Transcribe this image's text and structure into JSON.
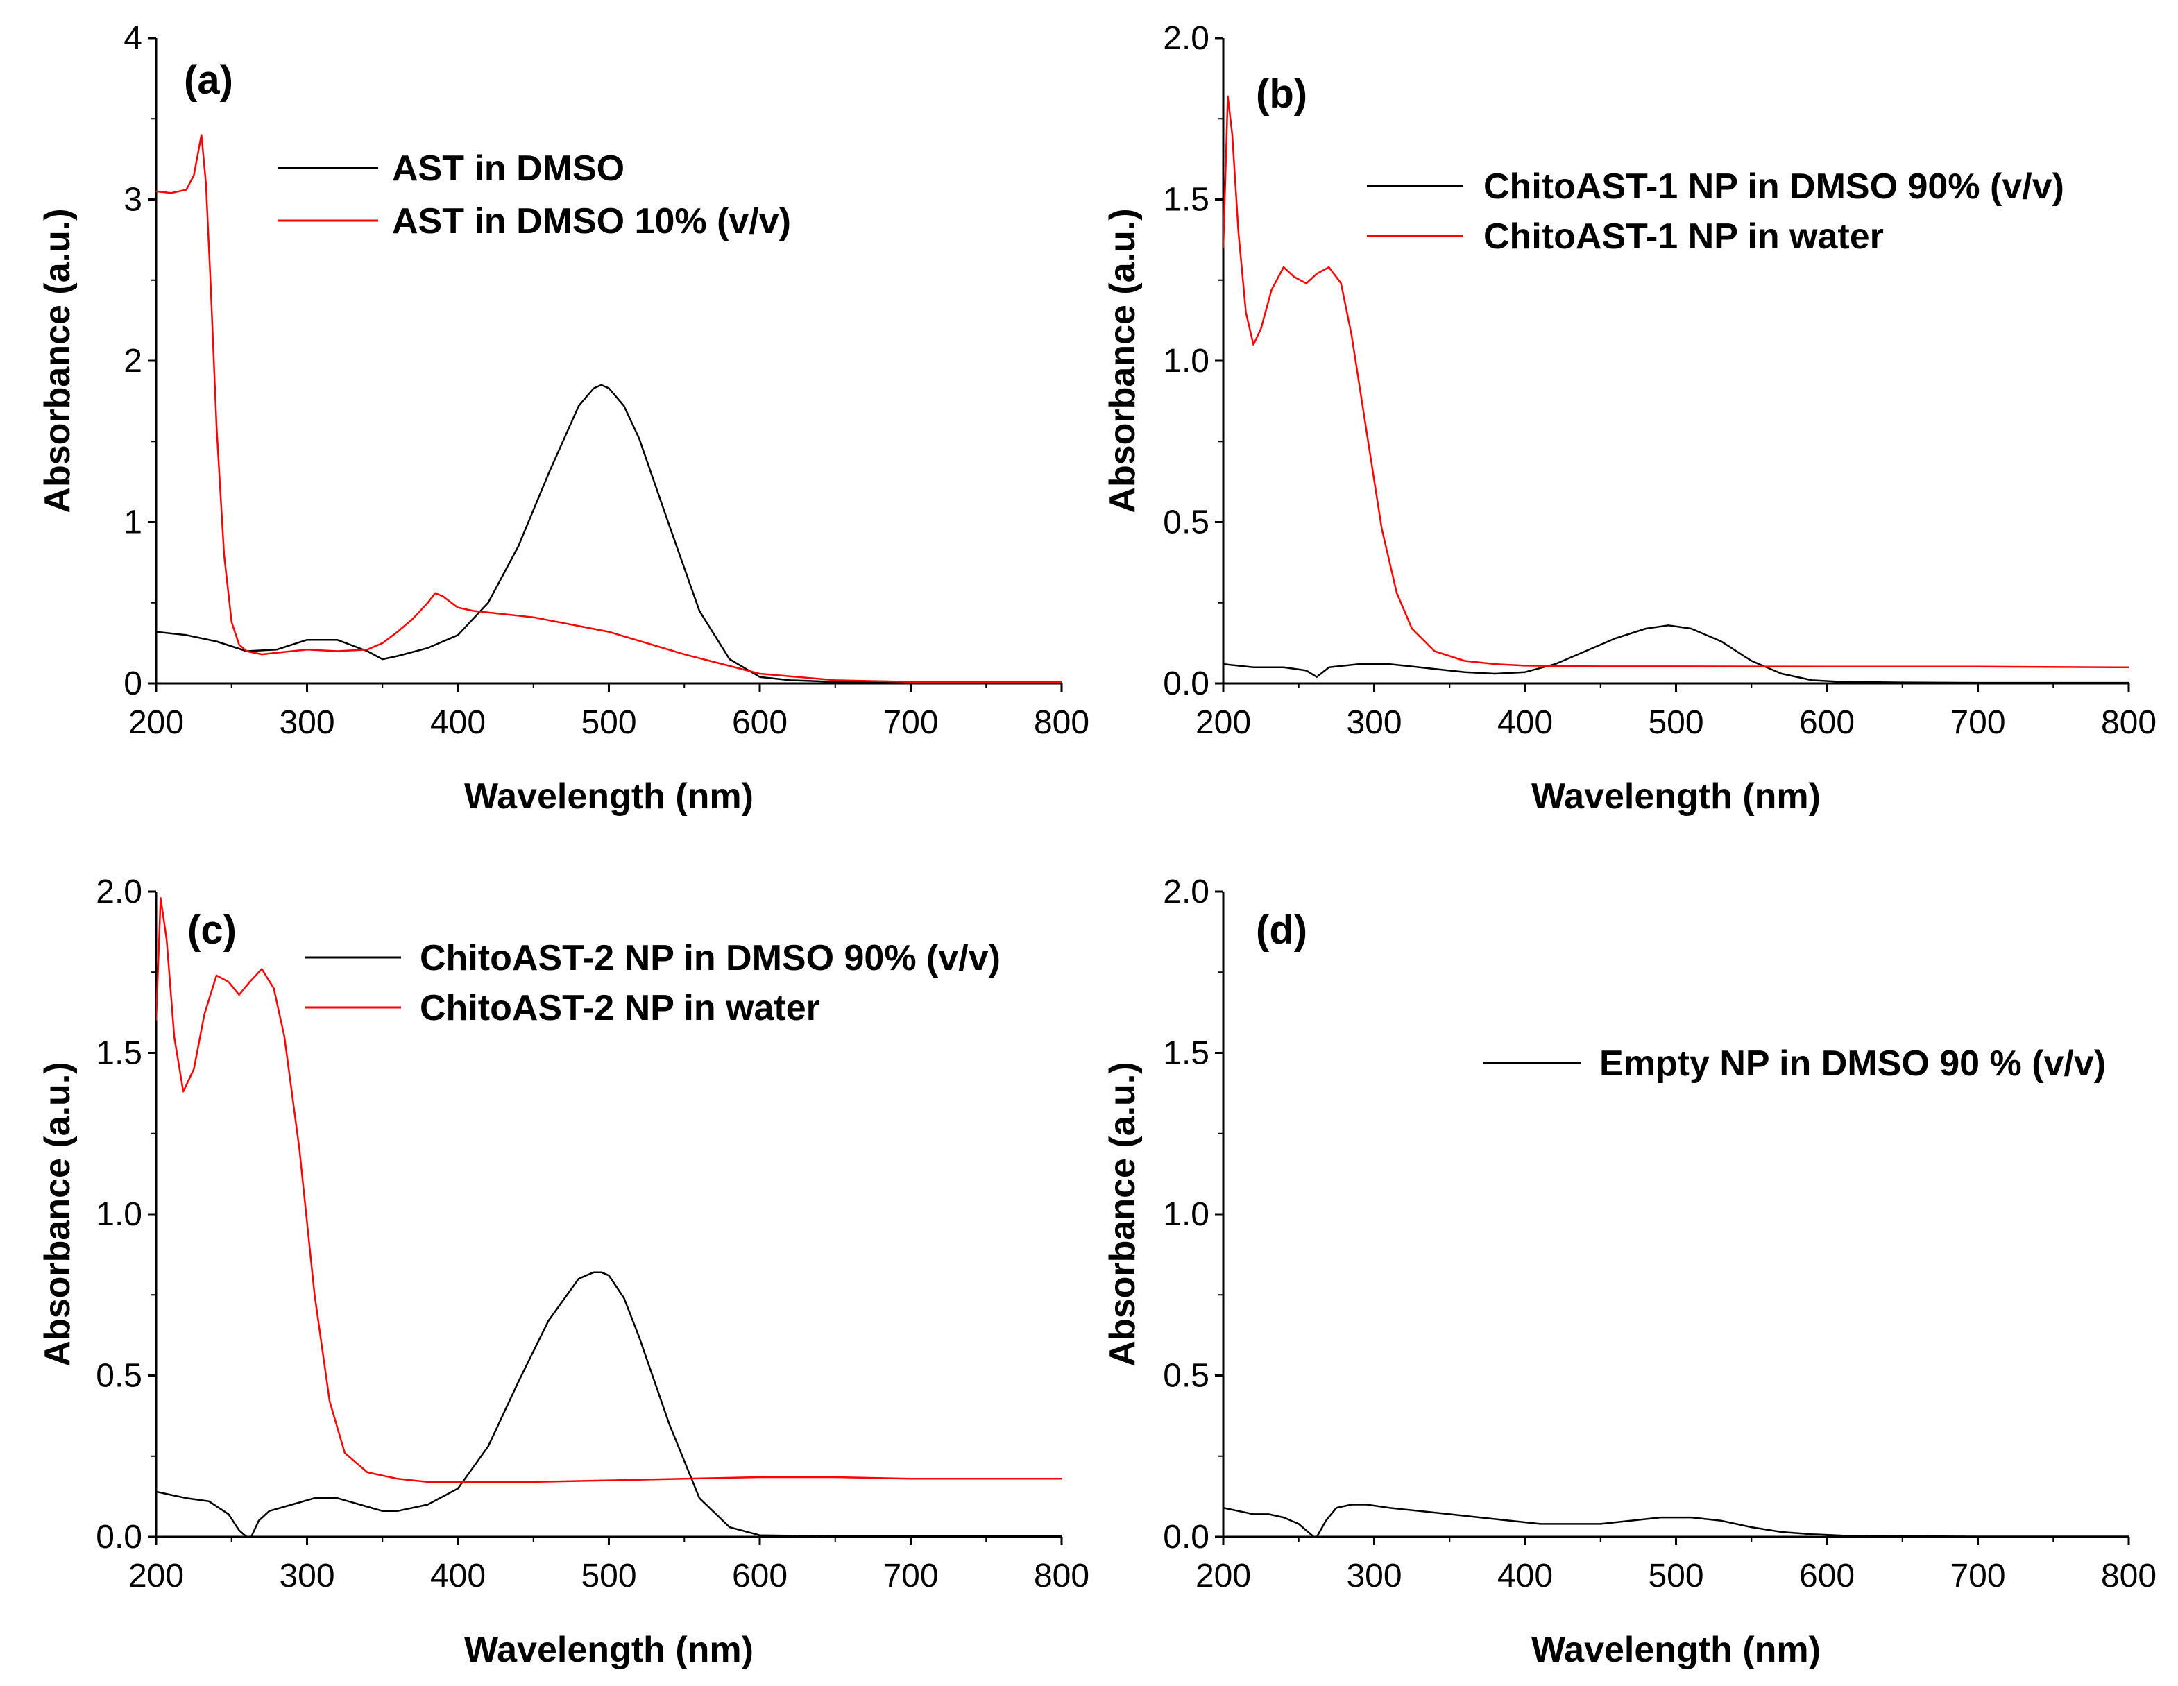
{
  "figure": {
    "panels": [
      {
        "id": "a",
        "label": "(a)",
        "ytick_labels": [
          "0",
          "1",
          "2",
          "3",
          "4"
        ]
      },
      {
        "id": "b",
        "label": "(b)",
        "ytick_labels": [
          "0.0",
          "0.5",
          "1.0",
          "1.5",
          "2.0"
        ]
      },
      {
        "id": "c",
        "label": "(c)",
        "ytick_labels": [
          "0.0",
          "0.5",
          "1.0",
          "1.5",
          "2.0"
        ]
      },
      {
        "id": "d",
        "label": "(d)",
        "ytick_labels": [
          "0.0",
          "0.5",
          "1.0",
          "1.5",
          "2.0"
        ]
      }
    ]
  },
  "chart_data": [
    {
      "type": "line",
      "panel": "(a)",
      "xlabel": "Wavelength (nm)",
      "ylabel": "Absorbance (a.u.)",
      "xlim": [
        200,
        800
      ],
      "ylim": [
        0,
        4
      ],
      "xticks": [
        200,
        300,
        400,
        500,
        600,
        700,
        800
      ],
      "yticks": [
        0,
        1,
        2,
        3,
        4
      ],
      "legend_position": "top-center",
      "series": [
        {
          "name": "AST in DMSO",
          "color": "#000000",
          "x": [
            200,
            220,
            240,
            260,
            280,
            300,
            320,
            340,
            350,
            360,
            380,
            400,
            420,
            440,
            460,
            480,
            490,
            495,
            500,
            510,
            520,
            540,
            560,
            580,
            600,
            620,
            650,
            700,
            750,
            800
          ],
          "y": [
            0.32,
            0.3,
            0.26,
            0.2,
            0.21,
            0.27,
            0.27,
            0.2,
            0.15,
            0.17,
            0.22,
            0.3,
            0.5,
            0.85,
            1.3,
            1.72,
            1.83,
            1.85,
            1.83,
            1.72,
            1.52,
            0.98,
            0.45,
            0.15,
            0.04,
            0.02,
            0.01,
            0.01,
            0.01,
            0.01
          ]
        },
        {
          "name": "AST in DMSO 10% (v/v)",
          "color": "#ff0000",
          "x": [
            200,
            210,
            220,
            225,
            228,
            230,
            233,
            236,
            240,
            245,
            250,
            255,
            260,
            270,
            280,
            300,
            320,
            340,
            350,
            360,
            370,
            380,
            385,
            390,
            400,
            410,
            420,
            450,
            500,
            550,
            600,
            650,
            700,
            750,
            800
          ],
          "y": [
            3.05,
            3.04,
            3.06,
            3.15,
            3.3,
            3.4,
            3.1,
            2.5,
            1.6,
            0.8,
            0.38,
            0.24,
            0.2,
            0.18,
            0.19,
            0.21,
            0.2,
            0.21,
            0.25,
            0.32,
            0.4,
            0.5,
            0.56,
            0.54,
            0.47,
            0.45,
            0.44,
            0.41,
            0.32,
            0.18,
            0.06,
            0.02,
            0.01,
            0.01,
            0.01
          ]
        }
      ]
    },
    {
      "type": "line",
      "panel": "(b)",
      "xlabel": "Wavelength (nm)",
      "ylabel": "Absorbance (a.u.)",
      "xlim": [
        200,
        800
      ],
      "ylim": [
        0,
        2.0
      ],
      "xticks": [
        200,
        300,
        400,
        500,
        600,
        700,
        800
      ],
      "yticks": [
        0.0,
        0.5,
        1.0,
        1.5,
        2.0
      ],
      "legend_position": "top-right",
      "series": [
        {
          "name": "ChitoAST-1 NP in DMSO 90% (v/v)",
          "color": "#000000",
          "x": [
            200,
            220,
            240,
            255,
            262,
            270,
            290,
            310,
            340,
            360,
            380,
            400,
            420,
            440,
            460,
            480,
            495,
            510,
            530,
            550,
            570,
            590,
            610,
            650,
            700,
            750,
            800
          ],
          "y": [
            0.06,
            0.05,
            0.05,
            0.04,
            0.02,
            0.05,
            0.06,
            0.06,
            0.045,
            0.035,
            0.03,
            0.035,
            0.06,
            0.1,
            0.14,
            0.17,
            0.18,
            0.17,
            0.13,
            0.07,
            0.03,
            0.01,
            0.005,
            0.003,
            0.002,
            0.002,
            0.002
          ]
        },
        {
          "name": "ChitoAST-1 NP in water",
          "color": "#ff0000",
          "x": [
            200,
            203,
            206,
            210,
            215,
            220,
            225,
            232,
            240,
            247,
            255,
            262,
            270,
            278,
            285,
            295,
            305,
            315,
            325,
            340,
            360,
            380,
            400,
            450,
            500,
            600,
            700,
            800
          ],
          "y": [
            1.35,
            1.82,
            1.7,
            1.4,
            1.15,
            1.05,
            1.1,
            1.22,
            1.29,
            1.26,
            1.24,
            1.27,
            1.29,
            1.24,
            1.08,
            0.78,
            0.48,
            0.28,
            0.17,
            0.1,
            0.07,
            0.06,
            0.055,
            0.053,
            0.053,
            0.052,
            0.052,
            0.05
          ]
        }
      ]
    },
    {
      "type": "line",
      "panel": "(c)",
      "xlabel": "Wavelength (nm)",
      "ylabel": "Absorbance (a.u.)",
      "xlim": [
        200,
        800
      ],
      "ylim": [
        0,
        2.0
      ],
      "xticks": [
        200,
        300,
        400,
        500,
        600,
        700,
        800
      ],
      "yticks": [
        0.0,
        0.5,
        1.0,
        1.5,
        2.0
      ],
      "legend_position": "top-right",
      "series": [
        {
          "name": "ChitoAST-2 NP in DMSO 90% (v/v)",
          "color": "#000000",
          "x": [
            200,
            210,
            220,
            235,
            248,
            255,
            260,
            263,
            268,
            275,
            290,
            305,
            320,
            335,
            350,
            360,
            380,
            400,
            420,
            440,
            460,
            480,
            490,
            495,
            500,
            510,
            520,
            540,
            560,
            580,
            600,
            650,
            700,
            800
          ],
          "y": [
            0.14,
            0.13,
            0.12,
            0.11,
            0.07,
            0.02,
            0.0,
            0.0,
            0.05,
            0.08,
            0.1,
            0.12,
            0.12,
            0.1,
            0.08,
            0.08,
            0.1,
            0.15,
            0.28,
            0.48,
            0.67,
            0.8,
            0.82,
            0.82,
            0.81,
            0.74,
            0.62,
            0.35,
            0.12,
            0.03,
            0.005,
            0.002,
            0.002,
            0.002
          ]
        },
        {
          "name": "ChitoAST-2 NP in water",
          "color": "#ff0000",
          "x": [
            200,
            203,
            207,
            212,
            218,
            225,
            232,
            240,
            248,
            255,
            262,
            270,
            278,
            285,
            295,
            305,
            315,
            325,
            340,
            360,
            380,
            400,
            450,
            500,
            550,
            600,
            650,
            700,
            800
          ],
          "y": [
            1.6,
            1.98,
            1.85,
            1.55,
            1.38,
            1.45,
            1.62,
            1.74,
            1.72,
            1.68,
            1.72,
            1.76,
            1.7,
            1.55,
            1.2,
            0.75,
            0.42,
            0.26,
            0.2,
            0.18,
            0.17,
            0.17,
            0.17,
            0.175,
            0.18,
            0.185,
            0.185,
            0.18,
            0.18
          ]
        }
      ]
    },
    {
      "type": "line",
      "panel": "(d)",
      "xlabel": "Wavelength (nm)",
      "ylabel": "Absorbance (a.u.)",
      "xlim": [
        200,
        800
      ],
      "ylim": [
        0,
        2.0
      ],
      "xticks": [
        200,
        300,
        400,
        500,
        600,
        700,
        800
      ],
      "yticks": [
        0.0,
        0.5,
        1.0,
        1.5,
        2.0
      ],
      "legend_position": "top-right",
      "series": [
        {
          "name": "Empty NP in DMSO 90 % (v/v)",
          "color": "#000000",
          "x": [
            200,
            210,
            220,
            230,
            240,
            250,
            255,
            260,
            262,
            268,
            275,
            285,
            295,
            310,
            330,
            350,
            370,
            390,
            410,
            430,
            450,
            470,
            490,
            510,
            530,
            550,
            570,
            590,
            610,
            650,
            700,
            750,
            800
          ],
          "y": [
            0.09,
            0.08,
            0.07,
            0.07,
            0.06,
            0.04,
            0.02,
            0.0,
            0.0,
            0.05,
            0.09,
            0.1,
            0.1,
            0.09,
            0.08,
            0.07,
            0.06,
            0.05,
            0.04,
            0.04,
            0.04,
            0.05,
            0.06,
            0.06,
            0.05,
            0.03,
            0.015,
            0.008,
            0.004,
            0.002,
            0.001,
            0.001,
            0.001
          ]
        }
      ]
    }
  ]
}
